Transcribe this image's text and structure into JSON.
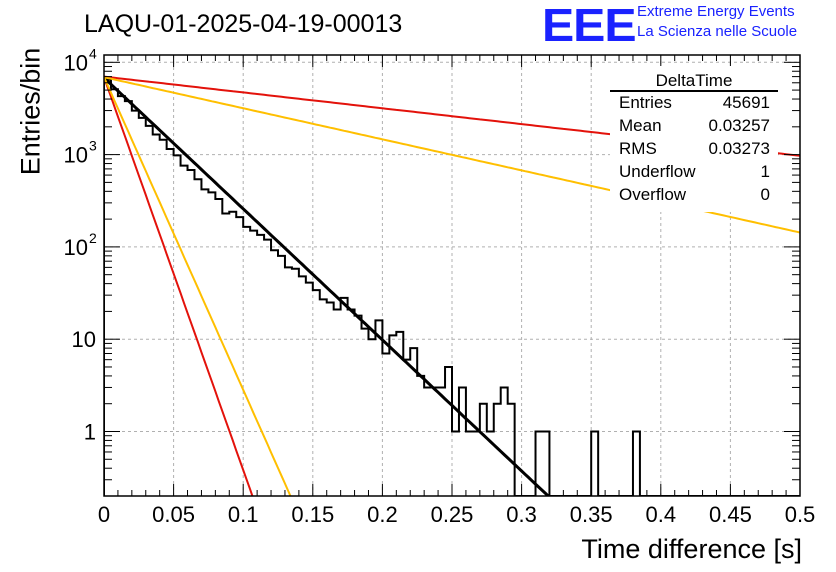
{
  "header": {
    "title": "LAQU-01-2025-04-19-00013",
    "logo": "EEE",
    "org_line1": "Extreme Energy Events",
    "org_line2": "La Scienza nelle Scuole"
  },
  "stats_box": {
    "name": "DeltaTime",
    "rows": [
      {
        "label": "Entries",
        "value": "45691"
      },
      {
        "label": "Mean",
        "value": "0.03257"
      },
      {
        "label": "RMS",
        "value": "0.03273"
      },
      {
        "label": "Underflow",
        "value": "1"
      },
      {
        "label": "Overflow",
        "value": "0"
      }
    ]
  },
  "chart_data": {
    "type": "line",
    "title": "LAQU-01-2025-04-19-00013",
    "xlabel": "Time difference [s]",
    "ylabel": "Entries/bin",
    "xlim": [
      0,
      0.5
    ],
    "ylim": [
      0.2,
      12000
    ],
    "yscale": "log",
    "grid": true,
    "x_ticks": [
      "0",
      "0.05",
      "0.1",
      "0.15",
      "0.2",
      "0.25",
      "0.3",
      "0.35",
      "0.4",
      "0.45",
      "0.5"
    ],
    "y_ticks": [
      {
        "value": 1,
        "label": "1"
      },
      {
        "value": 10,
        "label": "10"
      },
      {
        "value": 100,
        "label": "10",
        "exp": "2"
      },
      {
        "value": 1000,
        "label": "10",
        "exp": "3"
      },
      {
        "value": 10000,
        "label": "10",
        "exp": "4"
      }
    ],
    "histogram": {
      "bin_width": 0.005,
      "counts": [
        6500,
        5100,
        4300,
        3800,
        3000,
        2500,
        2050,
        1650,
        1450,
        1150,
        980,
        760,
        680,
        540,
        420,
        390,
        330,
        230,
        240,
        210,
        165,
        150,
        135,
        120,
        92,
        80,
        60,
        58,
        48,
        41,
        34,
        27,
        25,
        21,
        28,
        21,
        18,
        13,
        10,
        16,
        7,
        11,
        12,
        6,
        8,
        4,
        3,
        3,
        3,
        5,
        1,
        3,
        1,
        1,
        2,
        1,
        2,
        3,
        2,
        0.1,
        0,
        0,
        1,
        1,
        0.1,
        0.1,
        0.1,
        0,
        0,
        0,
        1,
        0.1,
        0.1,
        0.1,
        0,
        0,
        1,
        0,
        0,
        0,
        0,
        0,
        0,
        0,
        0,
        0,
        0,
        0,
        0,
        0,
        0,
        0,
        0,
        0,
        0,
        0,
        0,
        0,
        0,
        0
      ]
    },
    "series": [
      {
        "name": "fit",
        "color": "#000000",
        "start": 6800,
        "slope": -32.7
      },
      {
        "name": "red-slow",
        "color": "#e3120b",
        "start": 7000,
        "slope": -3.95
      },
      {
        "name": "orange-slow",
        "color": "#ffbf00",
        "start": 6900,
        "slope": -7.75
      },
      {
        "name": "red-fast",
        "color": "#e3120b",
        "start": 6900,
        "slope": -98.0
      },
      {
        "name": "orange-fast",
        "color": "#ffbf00",
        "start": 6900,
        "slope": -78.0
      }
    ]
  }
}
